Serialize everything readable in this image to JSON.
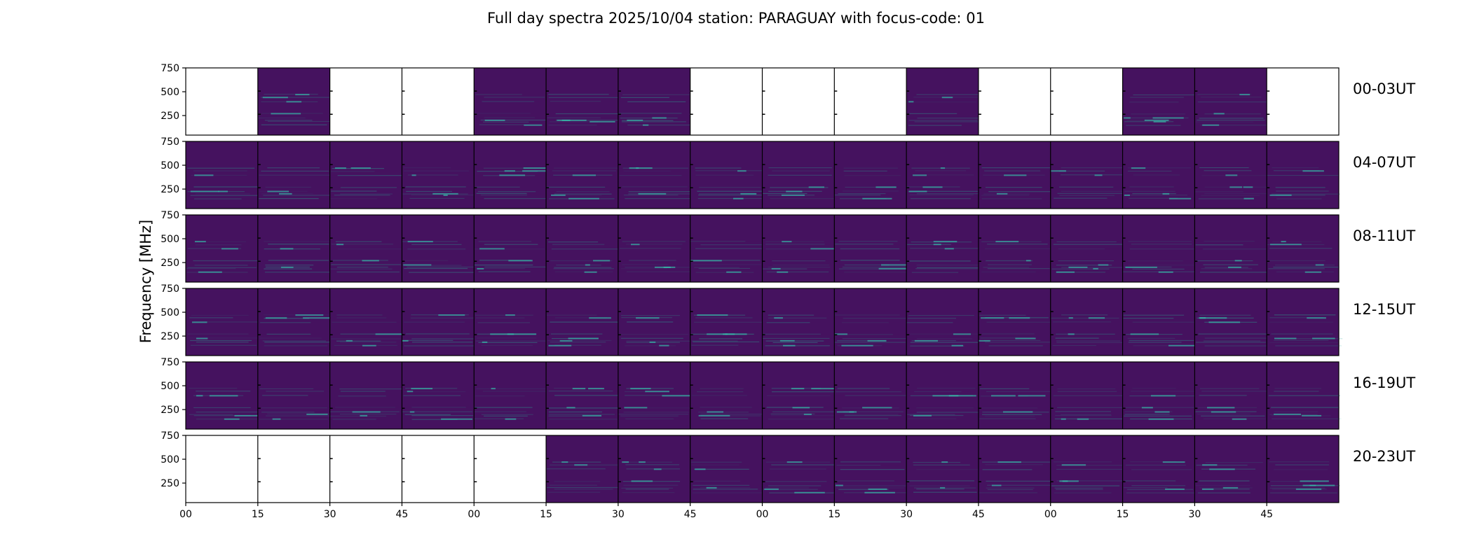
{
  "chart_data": {
    "type": "heatmap",
    "title": "Full day spectra 2025/10/04 station: PARAGUAY with focus-code: 01",
    "ylabel": "Frequency [MHz]",
    "xlabel": "",
    "ylim": [
      45,
      750
    ],
    "y_ticks": [
      "750",
      "500",
      "250"
    ],
    "x_ticks": [
      "00",
      "15",
      "30",
      "45",
      "00",
      "15",
      "30",
      "45",
      "00",
      "15",
      "30",
      "45",
      "00",
      "15",
      "30",
      "45"
    ],
    "colors": {
      "background": "#45125f",
      "line": "#2a9c8e",
      "bright": "#37c2ad",
      "empty": "#ffffff"
    },
    "rows": [
      {
        "label": "00-03UT",
        "present": [
          0,
          1,
          0,
          0,
          1,
          1,
          1,
          0,
          0,
          0,
          1,
          0,
          0,
          1,
          1,
          0
        ]
      },
      {
        "label": "04-07UT",
        "present": [
          1,
          1,
          1,
          1,
          1,
          1,
          1,
          1,
          1,
          1,
          1,
          1,
          1,
          1,
          1,
          1
        ]
      },
      {
        "label": "08-11UT",
        "present": [
          1,
          1,
          1,
          1,
          1,
          1,
          1,
          1,
          1,
          1,
          1,
          1,
          1,
          1,
          1,
          1
        ]
      },
      {
        "label": "12-15UT",
        "present": [
          1,
          1,
          1,
          1,
          1,
          1,
          1,
          1,
          1,
          1,
          1,
          1,
          1,
          1,
          1,
          1
        ]
      },
      {
        "label": "16-19UT",
        "present": [
          1,
          1,
          1,
          1,
          1,
          1,
          1,
          1,
          1,
          1,
          1,
          1,
          1,
          1,
          1,
          1
        ]
      },
      {
        "label": "20-23UT",
        "present": [
          0,
          0,
          0,
          0,
          0,
          1,
          1,
          1,
          1,
          1,
          1,
          1,
          1,
          1,
          1,
          1
        ]
      }
    ]
  }
}
